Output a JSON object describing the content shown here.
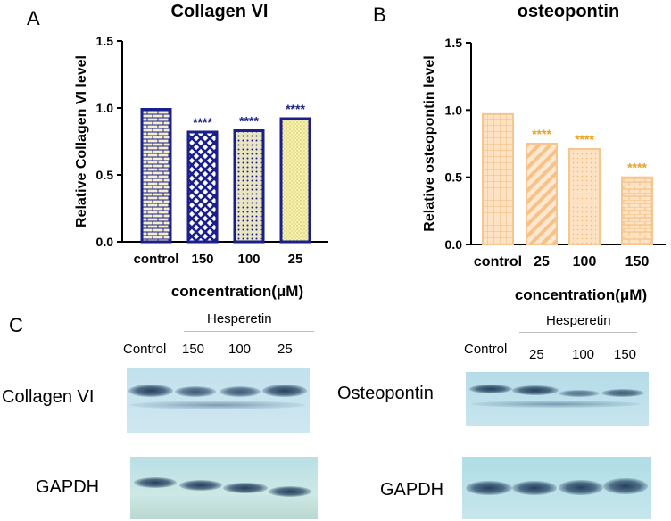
{
  "panels": {
    "a": "A",
    "b": "B",
    "c": "C"
  },
  "chart_data": [
    {
      "type": "bar",
      "title": "Collagen VI",
      "ylabel": "Relative Collagen VI  level",
      "xlabel": "concentration(μM)",
      "categories": [
        "control",
        "150",
        "100",
        "25"
      ],
      "values": [
        0.99,
        0.82,
        0.83,
        0.92
      ],
      "significance": [
        "",
        "****",
        "****",
        "****"
      ],
      "ylim": [
        0,
        1.5
      ],
      "yticks": [
        "0.0",
        "0.5",
        "1.0",
        "1.5"
      ],
      "colors": {
        "edge": "#1a1f8c",
        "fill": "#f4efcf",
        "pattern": "#1a1f8c",
        "stars": "#1a1f8c"
      }
    },
    {
      "type": "bar",
      "title": "osteopontin",
      "ylabel": "Relative osteopontin level",
      "xlabel": "concentration(μM)",
      "categories": [
        "control",
        "25",
        "100",
        "150"
      ],
      "values": [
        0.97,
        0.75,
        0.71,
        0.5
      ],
      "significance": [
        "",
        "****",
        "****",
        "****"
      ],
      "ylim": [
        0,
        1.5
      ],
      "yticks": [
        "0.0",
        "0.5",
        "1.0",
        "1.5"
      ],
      "colors": {
        "edge": "#f5c690",
        "fill": "#fde3c4",
        "pattern": "#f5c690",
        "stars": "#f0a020"
      }
    }
  ],
  "blots": {
    "left": {
      "treatment": "Hesperetin",
      "lanes": [
        "Control",
        "150",
        "100",
        "25"
      ],
      "protein": "Collagen VI",
      "loading": "GAPDH"
    },
    "right": {
      "treatment": "Hesperetin",
      "lanes": [
        "Control",
        "25",
        "100",
        "150"
      ],
      "protein": "Osteopontin",
      "loading": "GAPDH"
    }
  }
}
